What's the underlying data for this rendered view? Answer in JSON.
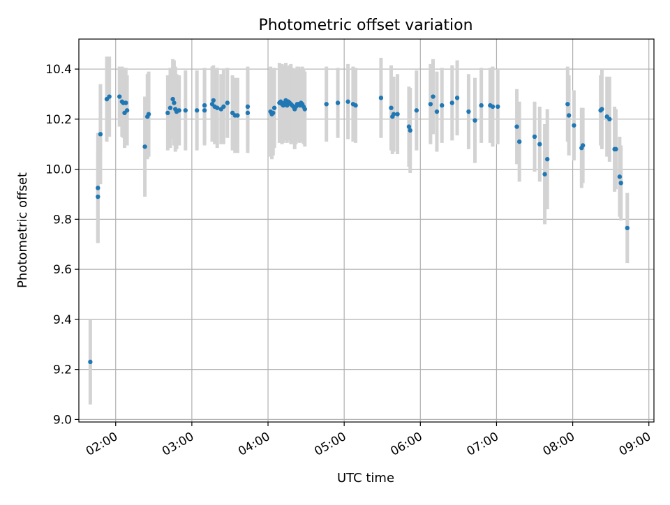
{
  "chart_data": {
    "type": "scatter",
    "title": "Photometric offset variation",
    "xlabel": "UTC time",
    "ylabel": "Photometric offset",
    "xlim": [
      "01:31",
      "09:04"
    ],
    "ylim": [
      8.99,
      10.52
    ],
    "x_ticks": [
      "02:00",
      "03:00",
      "04:00",
      "05:00",
      "06:00",
      "07:00",
      "08:00",
      "09:00"
    ],
    "y_ticks": [
      "9.0",
      "9.2",
      "9.4",
      "9.6",
      "9.8",
      "10.0",
      "10.2",
      "10.4"
    ],
    "grid": true,
    "legend": "none",
    "colors": {
      "point": "#1f77b4",
      "errorbar": "#d3d3d3",
      "grid": "#b0b0b0"
    },
    "series": [
      {
        "x": [
          "01:40",
          "01:46",
          "01:46",
          "01:48",
          "01:53",
          "01:55",
          "02:03",
          "02:05",
          "02:06",
          "02:07",
          "02:08",
          "02:09",
          "02:23",
          "02:25",
          "02:26",
          "02:41",
          "02:43",
          "02:45",
          "02:46",
          "02:47",
          "02:48",
          "02:50",
          "02:55",
          "03:04",
          "03:10",
          "03:10",
          "03:16",
          "03:17",
          "03:18",
          "03:20",
          "03:23",
          "03:25",
          "03:28",
          "03:32",
          "03:34",
          "03:36",
          "03:44",
          "03:44",
          "04:02",
          "04:03",
          "04:04",
          "04:05",
          "04:09",
          "04:10",
          "04:11",
          "04:12",
          "04:13",
          "04:14",
          "04:15",
          "04:16",
          "04:17",
          "04:18",
          "04:19",
          "04:20",
          "04:21",
          "04:22",
          "04:23",
          "04:24",
          "04:25",
          "04:26",
          "04:27",
          "04:28",
          "04:29",
          "04:46",
          "04:55",
          "05:03",
          "05:07",
          "05:09",
          "05:29",
          "05:37",
          "05:38",
          "05:39",
          "05:42",
          "05:51",
          "05:52",
          "05:57",
          "06:08",
          "06:10",
          "06:13",
          "06:17",
          "06:25",
          "06:29",
          "06:38",
          "06:43",
          "06:48",
          "06:55",
          "06:57",
          "07:01",
          "07:16",
          "07:18",
          "07:30",
          "07:34",
          "07:38",
          "07:40",
          "07:56",
          "07:57",
          "08:01",
          "08:07",
          "08:08",
          "08:22",
          "08:23",
          "08:27",
          "08:29",
          "08:33",
          "08:34",
          "08:37",
          "08:38",
          "08:43"
        ],
        "y": [
          9.23,
          9.89,
          9.925,
          10.14,
          10.28,
          10.29,
          10.29,
          10.27,
          10.265,
          10.225,
          10.265,
          10.235,
          10.09,
          10.21,
          10.22,
          10.225,
          10.245,
          10.28,
          10.265,
          10.24,
          10.23,
          10.235,
          10.235,
          10.235,
          10.235,
          10.255,
          10.26,
          10.275,
          10.25,
          10.245,
          10.24,
          10.25,
          10.265,
          10.225,
          10.215,
          10.215,
          10.225,
          10.25,
          10.23,
          10.22,
          10.225,
          10.245,
          10.265,
          10.27,
          10.26,
          10.255,
          10.265,
          10.275,
          10.255,
          10.27,
          10.265,
          10.26,
          10.255,
          10.25,
          10.24,
          10.25,
          10.26,
          10.26,
          10.255,
          10.265,
          10.26,
          10.25,
          10.24,
          10.26,
          10.265,
          10.27,
          10.26,
          10.255,
          10.285,
          10.245,
          10.21,
          10.22,
          10.22,
          10.17,
          10.155,
          10.235,
          10.26,
          10.29,
          10.23,
          10.255,
          10.265,
          10.285,
          10.23,
          10.195,
          10.255,
          10.255,
          10.25,
          10.25,
          10.17,
          10.11,
          10.13,
          10.1,
          9.98,
          10.04,
          10.26,
          10.215,
          10.175,
          10.085,
          10.095,
          10.235,
          10.24,
          10.21,
          10.2,
          10.08,
          10.08,
          9.97,
          9.945,
          9.765
        ],
        "yerr": [
          0.17,
          0.18,
          0.22,
          0.2,
          0.17,
          0.16,
          0.12,
          0.14,
          0.14,
          0.14,
          0.14,
          0.14,
          0.2,
          0.17,
          0.17,
          0.15,
          0.16,
          0.16,
          0.17,
          0.17,
          0.15,
          0.14,
          0.16,
          0.16,
          0.14,
          0.15,
          0.15,
          0.14,
          0.15,
          0.16,
          0.14,
          0.15,
          0.14,
          0.15,
          0.15,
          0.15,
          0.16,
          0.16,
          0.18,
          0.18,
          0.17,
          0.16,
          0.16,
          0.15,
          0.16,
          0.15,
          0.15,
          0.15,
          0.15,
          0.14,
          0.15,
          0.16,
          0.15,
          0.15,
          0.16,
          0.15,
          0.15,
          0.15,
          0.15,
          0.14,
          0.15,
          0.15,
          0.15,
          0.15,
          0.14,
          0.15,
          0.15,
          0.15,
          0.16,
          0.17,
          0.15,
          0.15,
          0.16,
          0.16,
          0.17,
          0.16,
          0.16,
          0.15,
          0.16,
          0.15,
          0.15,
          0.15,
          0.15,
          0.17,
          0.15,
          0.15,
          0.16,
          0.15,
          0.15,
          0.16,
          0.14,
          0.15,
          0.2,
          0.2,
          0.15,
          0.16,
          0.14,
          0.16,
          0.15,
          0.14,
          0.16,
          0.16,
          0.17,
          0.17,
          0.16,
          0.16,
          0.15,
          0.14
        ]
      }
    ]
  }
}
